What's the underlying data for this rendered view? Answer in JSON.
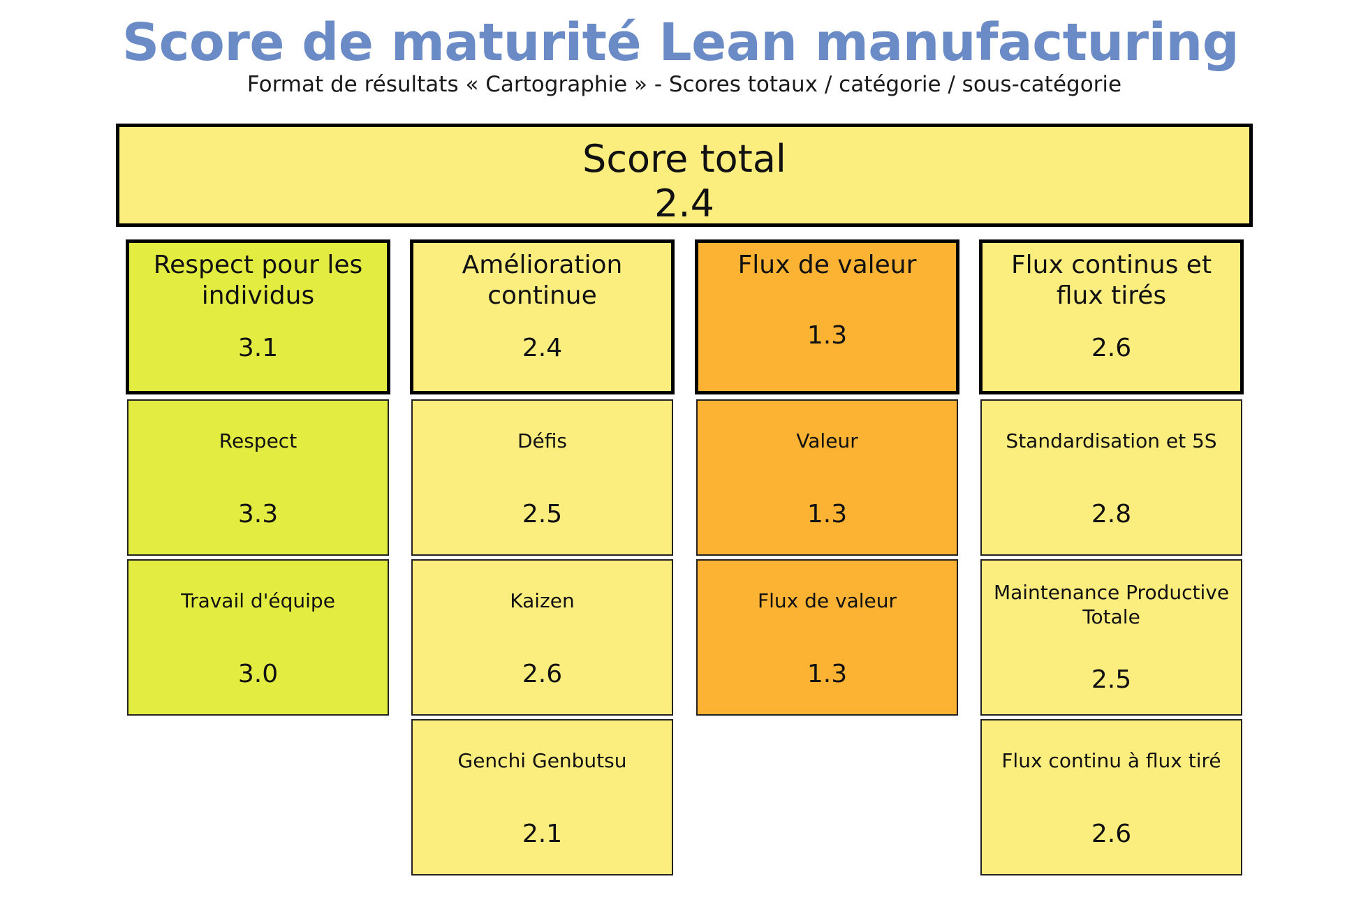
{
  "title": "Score de maturité Lean manufacturing",
  "subtitle": "Format de résultats « Cartographie » - Scores totaux / catégorie / sous-catégorie",
  "colors": {
    "title": "#6b8bc6",
    "green_yellow": "#e3ec41",
    "light_yellow": "#fcee7e",
    "orange": "#fcb232"
  },
  "total": {
    "label": "Score total",
    "value": "2.4",
    "color": "#fcee7e"
  },
  "categories": [
    {
      "label": "Respect pour les individus",
      "value": "3.1",
      "color": "#e3ec41",
      "subcategories": [
        {
          "label": "Respect",
          "value": "3.3",
          "color": "#e3ec41"
        },
        {
          "label": "Travail d'équipe",
          "value": "3.0",
          "color": "#e3ec41"
        }
      ]
    },
    {
      "label": "Amélioration continue",
      "value": "2.4",
      "color": "#fcee7e",
      "subcategories": [
        {
          "label": "Défis",
          "value": "2.5",
          "color": "#fcee7e"
        },
        {
          "label": "Kaizen",
          "value": "2.6",
          "color": "#fcee7e"
        },
        {
          "label": "Genchi Genbutsu",
          "value": "2.1",
          "color": "#fcee7e"
        }
      ]
    },
    {
      "label": "Flux de valeur",
      "value": "1.3",
      "color": "#fcb232",
      "subcategories": [
        {
          "label": "Valeur",
          "value": "1.3",
          "color": "#fcb232"
        },
        {
          "label": "Flux de valeur",
          "value": "1.3",
          "color": "#fcb232"
        }
      ]
    },
    {
      "label": "Flux continus et flux tirés",
      "value": "2.6",
      "color": "#fcee7e",
      "subcategories": [
        {
          "label": "Standardisation et 5S",
          "value": "2.8",
          "color": "#fcee7e"
        },
        {
          "label": "Maintenance Productive Totale",
          "value": "2.5",
          "color": "#fcee7e"
        },
        {
          "label": "Flux continu à flux tiré",
          "value": "2.6",
          "color": "#fcee7e"
        }
      ]
    }
  ]
}
